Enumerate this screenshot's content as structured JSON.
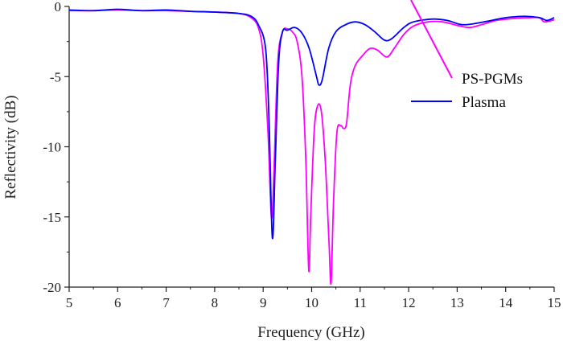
{
  "chart_data": {
    "type": "line",
    "title": "",
    "xlabel": "Frequency (GHz)",
    "ylabel": "Reflectivity (dB)",
    "xlim": [
      5,
      15
    ],
    "ylim": [
      -20,
      0
    ],
    "xticks": [
      "5",
      "6",
      "7",
      "8",
      "9",
      "10",
      "11",
      "12",
      "13",
      "14",
      "15"
    ],
    "yticks": [
      "0",
      "-5",
      "-10",
      "-15",
      "-20"
    ],
    "grid": false,
    "legend_position": "right-center",
    "series": [
      {
        "name": "PS-PGMs",
        "color": "#ff00ff",
        "x": [
          5,
          5.5,
          6,
          6.5,
          7,
          7.5,
          8,
          8.5,
          8.75,
          8.9,
          9.0,
          9.1,
          9.17,
          9.22,
          9.3,
          9.4,
          9.5,
          9.6,
          9.7,
          9.8,
          9.88,
          9.94,
          9.98,
          10.05,
          10.12,
          10.2,
          10.28,
          10.36,
          10.4,
          10.45,
          10.52,
          10.6,
          10.66,
          10.72,
          10.8,
          10.9,
          11.05,
          11.2,
          11.35,
          11.55,
          11.7,
          11.9,
          12.1,
          12.4,
          12.7,
          13.0,
          13.25,
          13.5,
          13.8,
          14.2,
          14.5,
          14.7,
          14.8,
          15
        ],
        "y": [
          -0.3,
          -0.3,
          -0.25,
          -0.3,
          -0.3,
          -0.35,
          -0.4,
          -0.5,
          -0.8,
          -1.5,
          -3.5,
          -9,
          -15,
          -12,
          -4,
          -1.8,
          -1.6,
          -1.8,
          -2.5,
          -5,
          -11,
          -18.8,
          -15,
          -9,
          -7.1,
          -7.5,
          -11,
          -17,
          -19.7,
          -14,
          -9,
          -8.5,
          -8.7,
          -8.3,
          -5.5,
          -4.2,
          -3.5,
          -3.0,
          -3.1,
          -3.6,
          -3.0,
          -2.0,
          -1.4,
          -1.1,
          -1.1,
          -1.35,
          -1.5,
          -1.3,
          -1.0,
          -0.85,
          -0.8,
          -0.8,
          -1.1,
          -0.95
        ]
      },
      {
        "name": "Plasma",
        "color": "#0000ff",
        "x": [
          5,
          5.5,
          6,
          6.5,
          7,
          7.5,
          8,
          8.5,
          8.75,
          8.9,
          9.05,
          9.12,
          9.19,
          9.25,
          9.32,
          9.4,
          9.5,
          9.65,
          9.8,
          9.95,
          10.1,
          10.15,
          10.22,
          10.35,
          10.5,
          10.7,
          10.9,
          11.1,
          11.3,
          11.5,
          11.65,
          11.9,
          12.1,
          12.5,
          12.8,
          13.1,
          13.4,
          13.7,
          14.0,
          14.4,
          14.7,
          14.85,
          15
        ],
        "y": [
          -0.25,
          -0.3,
          -0.2,
          -0.3,
          -0.25,
          -0.35,
          -0.4,
          -0.5,
          -0.7,
          -1.3,
          -3,
          -8,
          -16.5,
          -11,
          -4,
          -1.8,
          -1.7,
          -1.5,
          -1.9,
          -3,
          -5.0,
          -5.6,
          -5.2,
          -3,
          -1.8,
          -1.3,
          -1.1,
          -1.3,
          -1.8,
          -2.4,
          -2.3,
          -1.5,
          -1.1,
          -0.9,
          -1.0,
          -1.3,
          -1.2,
          -1.0,
          -0.8,
          -0.7,
          -0.8,
          -1.0,
          -0.8
        ]
      }
    ]
  }
}
